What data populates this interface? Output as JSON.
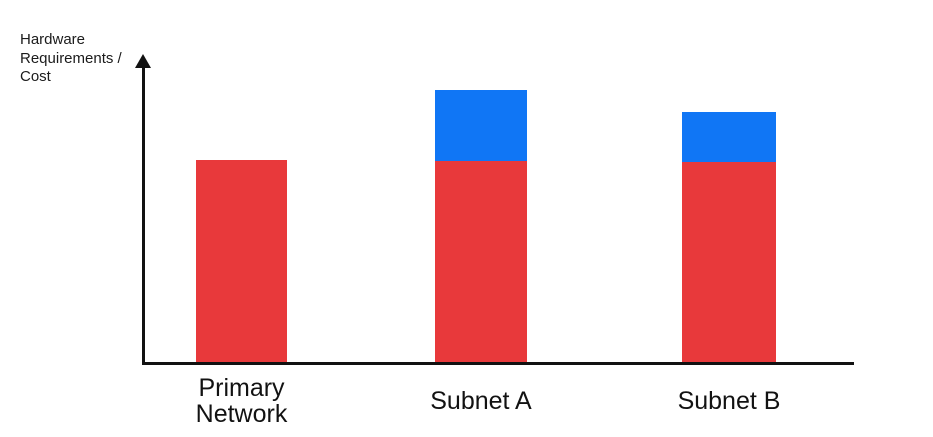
{
  "page": {
    "background": "#FFFFFF"
  },
  "chart_data": {
    "type": "bar",
    "stacked": true,
    "title": "",
    "xlabel": "",
    "ylabel": "Hardware\nRequirements /\nCost",
    "categories": [
      "Primary Network",
      "Subnet A",
      "Subnet B"
    ],
    "series": [
      {
        "name": "red-segment",
        "color": "#E8393B",
        "values": [
          202,
          201,
          200
        ]
      },
      {
        "name": "blue-segment",
        "color": "#1076F5",
        "values": [
          0,
          71,
          50
        ]
      }
    ],
    "value_scale": "relative units (no numeric ticks or value labels shown)",
    "ylim": [
      0,
      300
    ],
    "grid": false,
    "legend": false,
    "tick_labels": false,
    "axis_color": "#111111",
    "label_color": "#121212"
  }
}
